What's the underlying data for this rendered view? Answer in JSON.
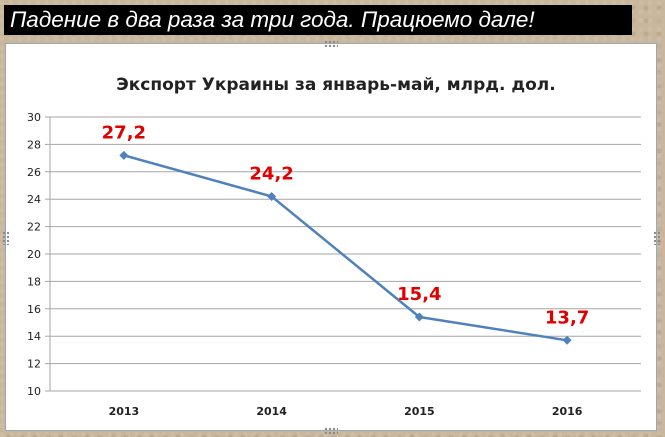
{
  "banner": {
    "text": "Падение в два раза за три года. Працюемо дале!"
  },
  "chart_data": {
    "type": "line",
    "title": "Экспорт Украины за январь-май, млрд. дол.",
    "categories": [
      "2013",
      "2014",
      "2015",
      "2016"
    ],
    "values": [
      27.2,
      24.2,
      15.4,
      13.7
    ],
    "data_labels": [
      "27,2",
      "24,2",
      "15,4",
      "13,7"
    ],
    "ylim": [
      10,
      30
    ],
    "yticks": [
      "10",
      "12",
      "14",
      "16",
      "18",
      "20",
      "22",
      "24",
      "26",
      "28",
      "30"
    ],
    "xlabel": "",
    "ylabel": "",
    "grid": true,
    "legend": "none",
    "colors": {
      "line": "#4f81bd",
      "data_label": "#e00000",
      "grid": "#a6a6a6",
      "text": "#222222"
    }
  }
}
